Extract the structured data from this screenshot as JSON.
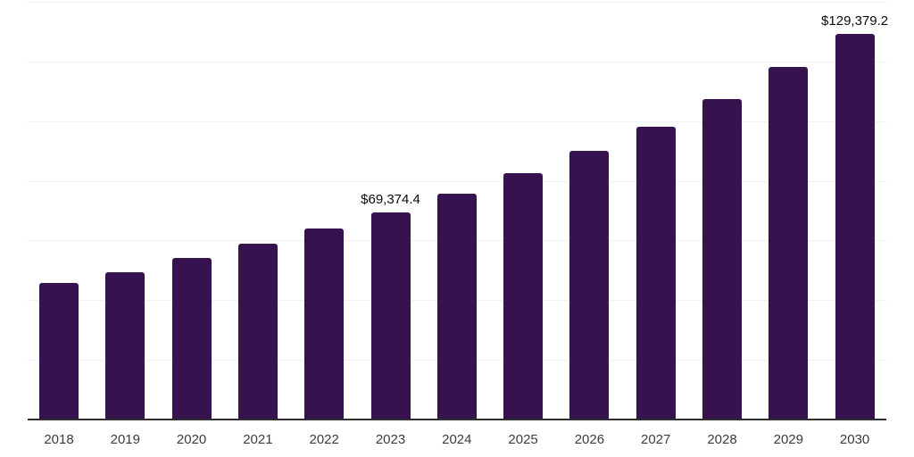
{
  "chart_data": {
    "type": "bar",
    "title": "",
    "xlabel": "",
    "ylabel": "",
    "categories": [
      "2018",
      "2019",
      "2020",
      "2021",
      "2022",
      "2023",
      "2024",
      "2025",
      "2026",
      "2027",
      "2028",
      "2029",
      "2030"
    ],
    "values": [
      45800,
      49400,
      54100,
      58800,
      64000,
      69374.4,
      75700,
      82600,
      90000,
      98100,
      107400,
      118200,
      129379.2
    ],
    "value_labels": [
      {
        "category": "2023",
        "text": "$69,374.4"
      },
      {
        "category": "2030",
        "text": "$129,379.2"
      }
    ],
    "ylim": [
      0,
      140000
    ],
    "grid_step": 20000,
    "grid": true,
    "y_tick_labels_visible": false,
    "legend_position": "none",
    "colors": {
      "bar": "#36124E",
      "gridline": "#f0f0f0",
      "axis_line": "#2f2f2f",
      "category_label": "#3c3c3c",
      "value_label": "#0a0a0a",
      "background": "#ffffff"
    }
  }
}
